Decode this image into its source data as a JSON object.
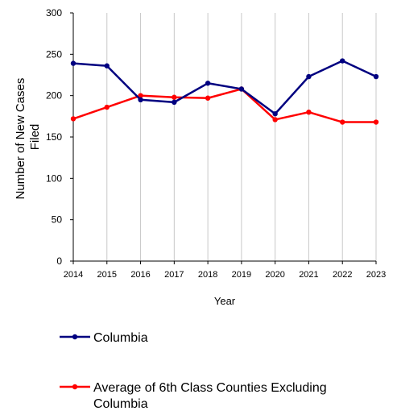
{
  "chart_data": {
    "type": "line",
    "categories": [
      "2014",
      "2015",
      "2016",
      "2017",
      "2018",
      "2019",
      "2020",
      "2021",
      "2022",
      "2023"
    ],
    "series": [
      {
        "name": "Columbia",
        "color": "#000080",
        "values": [
          239,
          236,
          195,
          192,
          215,
          208,
          178,
          223,
          242,
          223
        ]
      },
      {
        "name": "Average of 6th Class Counties Excluding Columbia",
        "color": "#ff0000",
        "values": [
          172,
          186,
          200,
          198,
          197,
          208,
          171,
          180,
          168,
          168
        ]
      }
    ],
    "xlabel": "Year",
    "ylabel": "Number of New Cases Filed",
    "ylabel_lines": [
      "Number of New Cases",
      "Filed"
    ],
    "legend_lines": [
      [
        "Columbia"
      ],
      [
        "Average of 6th Class Counties Excluding",
        "Columbia"
      ]
    ],
    "yticks": [
      "0",
      "50",
      "100",
      "150",
      "200",
      "250",
      "300"
    ],
    "ylim": [
      0,
      300
    ],
    "grid": "vertical",
    "legend_position": "bottom"
  }
}
